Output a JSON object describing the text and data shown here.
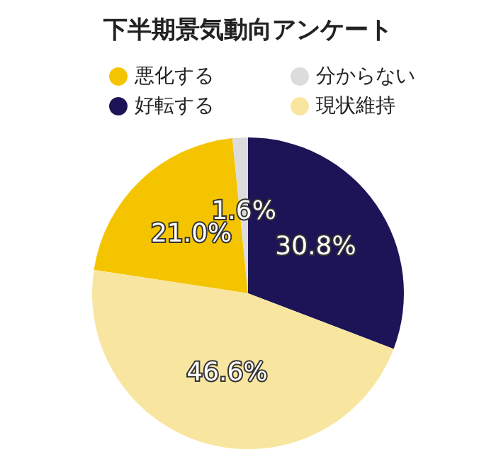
{
  "chart_data": {
    "type": "pie",
    "title": "下半期景気動向アンケート",
    "categories": [
      "悪化する",
      "分からない",
      "好転する",
      "現状維持"
    ],
    "values": [
      21.0,
      1.6,
      30.8,
      46.6
    ],
    "colors": [
      "#f5c400",
      "#dcdcdc",
      "#1c1456",
      "#f8e6a0"
    ],
    "value_labels": [
      "21.0%",
      "1.6%",
      "30.8%",
      "46.6%"
    ],
    "legend": "top"
  }
}
